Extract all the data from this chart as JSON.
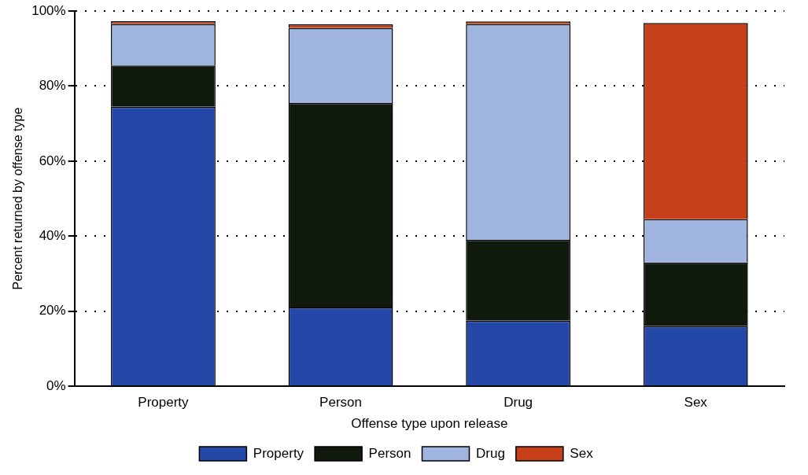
{
  "chart_data": {
    "type": "bar",
    "stacked": true,
    "xlabel": "Offense type upon release",
    "ylabel": "Percent returned by offense type",
    "categories": [
      "Property",
      "Person",
      "Drug",
      "Sex"
    ],
    "series": [
      {
        "name": "Property",
        "color": "#2448a8",
        "values": [
          74.5,
          21,
          17.5,
          16
        ]
      },
      {
        "name": "Person",
        "color": "#0f1a0c",
        "values": [
          11,
          54.5,
          21.5,
          17
        ]
      },
      {
        "name": "Drug",
        "color": "#a0b4e0",
        "values": [
          11,
          20,
          57.5,
          11.5
        ]
      },
      {
        "name": "Sex",
        "color": "#c8401a",
        "values": [
          0.8,
          1,
          0.7,
          52.3
        ]
      }
    ],
    "ylim": [
      0,
      100
    ],
    "yticks": [
      {
        "value": 0,
        "label": "0%"
      },
      {
        "value": 20,
        "label": "20%"
      },
      {
        "value": 40,
        "label": "40%"
      },
      {
        "value": 60,
        "label": "60%"
      },
      {
        "value": 80,
        "label": "80%"
      },
      {
        "value": 100,
        "label": "100%"
      }
    ],
    "grid": "y",
    "legend": "bottom"
  }
}
